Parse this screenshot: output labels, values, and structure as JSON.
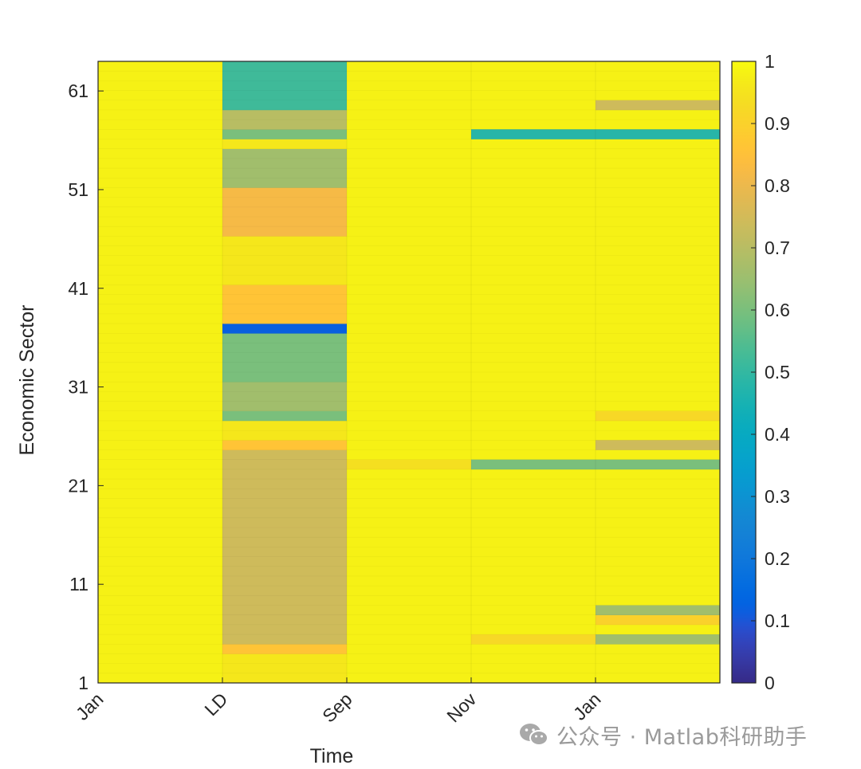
{
  "chart_data": {
    "type": "heatmap",
    "xlabel": "Time",
    "ylabel": "Economic Sector",
    "x_tick_labels": [
      "Jan",
      "LD",
      "Sep",
      "Nov",
      "Jan"
    ],
    "y_tick_values": [
      1,
      11,
      21,
      31,
      41,
      51,
      61
    ],
    "y_tick_labels": [
      "1",
      "11",
      "21",
      "31",
      "41",
      "51",
      "61"
    ],
    "y_range": [
      1,
      64
    ],
    "colorbar": {
      "range": [
        0,
        1
      ],
      "tick_values": [
        0,
        0.1,
        0.2,
        0.3,
        0.4,
        0.5,
        0.6,
        0.7,
        0.8,
        0.9,
        1
      ],
      "tick_labels": [
        "0",
        "0.1",
        "0.2",
        "0.3",
        "0.4",
        "0.5",
        "0.6",
        "0.7",
        "0.8",
        "0.9",
        "1"
      ],
      "colormap": "parula"
    },
    "default_value": 0.98,
    "periods": [
      {
        "column": 0,
        "segments": []
      },
      {
        "column": 1,
        "segments": [
          {
            "rows": [
              1,
              3
            ],
            "value": 0.96
          },
          {
            "rows": [
              4,
              4
            ],
            "value": 0.86
          },
          {
            "rows": [
              5,
              24
            ],
            "value": 0.74
          },
          {
            "rows": [
              25,
              25
            ],
            "value": 0.86
          },
          {
            "rows": [
              26,
              27
            ],
            "value": 0.96
          },
          {
            "rows": [
              28,
              28
            ],
            "value": 0.6
          },
          {
            "rows": [
              29,
              31
            ],
            "value": 0.66
          },
          {
            "rows": [
              32,
              36
            ],
            "value": 0.6
          },
          {
            "rows": [
              37,
              37
            ],
            "value": 0.12
          },
          {
            "rows": [
              38,
              41
            ],
            "value": 0.86
          },
          {
            "rows": [
              42,
              46
            ],
            "value": 0.96
          },
          {
            "rows": [
              47,
              51
            ],
            "value": 0.82
          },
          {
            "rows": [
              52,
              55
            ],
            "value": 0.66
          },
          {
            "rows": [
              56,
              56
            ],
            "value": 0.96
          },
          {
            "rows": [
              57,
              57
            ],
            "value": 0.6
          },
          {
            "rows": [
              58,
              59
            ],
            "value": 0.7
          },
          {
            "rows": [
              60,
              64
            ],
            "value": 0.52
          }
        ]
      },
      {
        "column": 2,
        "segments": [
          {
            "rows": [
              23,
              23
            ],
            "value": 0.94
          }
        ]
      },
      {
        "column": 3,
        "segments": [
          {
            "rows": [
              5,
              5
            ],
            "value": 0.92
          },
          {
            "rows": [
              23,
              23
            ],
            "value": 0.6
          },
          {
            "rows": [
              57,
              57
            ],
            "value": 0.48
          }
        ]
      },
      {
        "column": 4,
        "segments": [
          {
            "rows": [
              5,
              5
            ],
            "value": 0.66
          },
          {
            "rows": [
              7,
              7
            ],
            "value": 0.9
          },
          {
            "rows": [
              8,
              8
            ],
            "value": 0.66
          },
          {
            "rows": [
              23,
              23
            ],
            "value": 0.6
          },
          {
            "rows": [
              25,
              25
            ],
            "value": 0.74
          },
          {
            "rows": [
              28,
              28
            ],
            "value": 0.92
          },
          {
            "rows": [
              57,
              57
            ],
            "value": 0.48
          },
          {
            "rows": [
              60,
              60
            ],
            "value": 0.74
          }
        ]
      }
    ]
  },
  "watermark": {
    "icon": "wechat-icon",
    "text": "公众号 · Matlab科研助手"
  }
}
